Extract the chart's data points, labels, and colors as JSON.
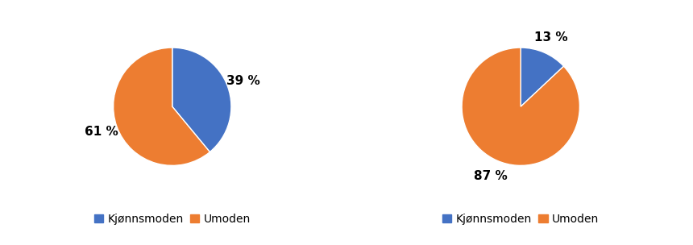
{
  "chart1": {
    "values": [
      39,
      61
    ],
    "colors": [
      "#4472C4",
      "#ED7D31"
    ],
    "pct_labels": [
      "39 %",
      "61 %"
    ],
    "startangle": 90
  },
  "chart2": {
    "values": [
      13,
      87
    ],
    "colors": [
      "#4472C4",
      "#ED7D31"
    ],
    "pct_labels": [
      "13 %",
      "87 %"
    ],
    "startangle": 90
  },
  "legend_labels": [
    "Kjønnsmoden",
    "Umoden"
  ],
  "legend_colors": [
    "#4472C4",
    "#ED7D31"
  ],
  "background_color": "#FFFFFF",
  "text_fontsize": 11,
  "legend_fontsize": 10
}
